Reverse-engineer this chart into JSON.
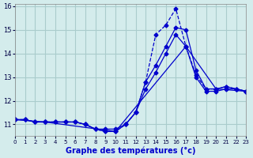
{
  "xlabel": "Graphe des températures (°c)",
  "background_color": "#d4ecec",
  "grid_color": "#aacccc",
  "line_color": "#0000cc",
  "xlim": [
    0,
    23
  ],
  "ylim": [
    10.5,
    16.1
  ],
  "yticks": [
    11,
    12,
    13,
    14,
    15,
    16
  ],
  "xticks": [
    0,
    1,
    2,
    3,
    4,
    5,
    6,
    7,
    8,
    9,
    10,
    11,
    12,
    13,
    14,
    15,
    16,
    17,
    18,
    19,
    20,
    21,
    22,
    23
  ],
  "series": [
    {
      "x": [
        0,
        1,
        2,
        3,
        4,
        5,
        6,
        7,
        8,
        9,
        10,
        11,
        12,
        13,
        14,
        15,
        16,
        17,
        18,
        19,
        20,
        21,
        22,
        23
      ],
      "y": [
        11.2,
        11.2,
        11.1,
        11.1,
        11.1,
        11.1,
        11.1,
        11.0,
        10.8,
        10.7,
        10.7,
        11.0,
        11.5,
        12.8,
        14.8,
        15.2,
        15.9,
        14.3,
        13.1,
        12.5,
        12.5,
        12.6,
        12.5,
        12.4
      ]
    },
    {
      "x": [
        0,
        1,
        2,
        3,
        4,
        5,
        6,
        7,
        8,
        9,
        10,
        11,
        12,
        13,
        14,
        15,
        16,
        17,
        18,
        19,
        20,
        21,
        22,
        23
      ],
      "y": [
        11.2,
        11.2,
        11.1,
        11.1,
        11.1,
        11.1,
        11.1,
        11.0,
        10.8,
        10.8,
        10.8,
        11.0,
        11.5,
        12.8,
        13.5,
        14.3,
        15.1,
        15.0,
        13.3,
        12.5,
        12.5,
        12.6,
        12.5,
        12.4
      ]
    },
    {
      "x": [
        0,
        1,
        2,
        3,
        4,
        5,
        6,
        7,
        8,
        9,
        10,
        11,
        12,
        13,
        14,
        15,
        16,
        17,
        18,
        19,
        20,
        21,
        22,
        23
      ],
      "y": [
        11.2,
        11.2,
        11.1,
        11.1,
        11.1,
        11.1,
        11.1,
        11.0,
        10.8,
        10.7,
        10.7,
        11.0,
        11.5,
        12.5,
        13.2,
        14.0,
        14.8,
        14.3,
        13.0,
        12.4,
        12.4,
        12.5,
        12.5,
        12.4
      ]
    },
    {
      "x": [
        0,
        3,
        10,
        17,
        20,
        23
      ],
      "y": [
        11.2,
        11.1,
        10.7,
        14.3,
        12.5,
        12.4
      ]
    }
  ]
}
